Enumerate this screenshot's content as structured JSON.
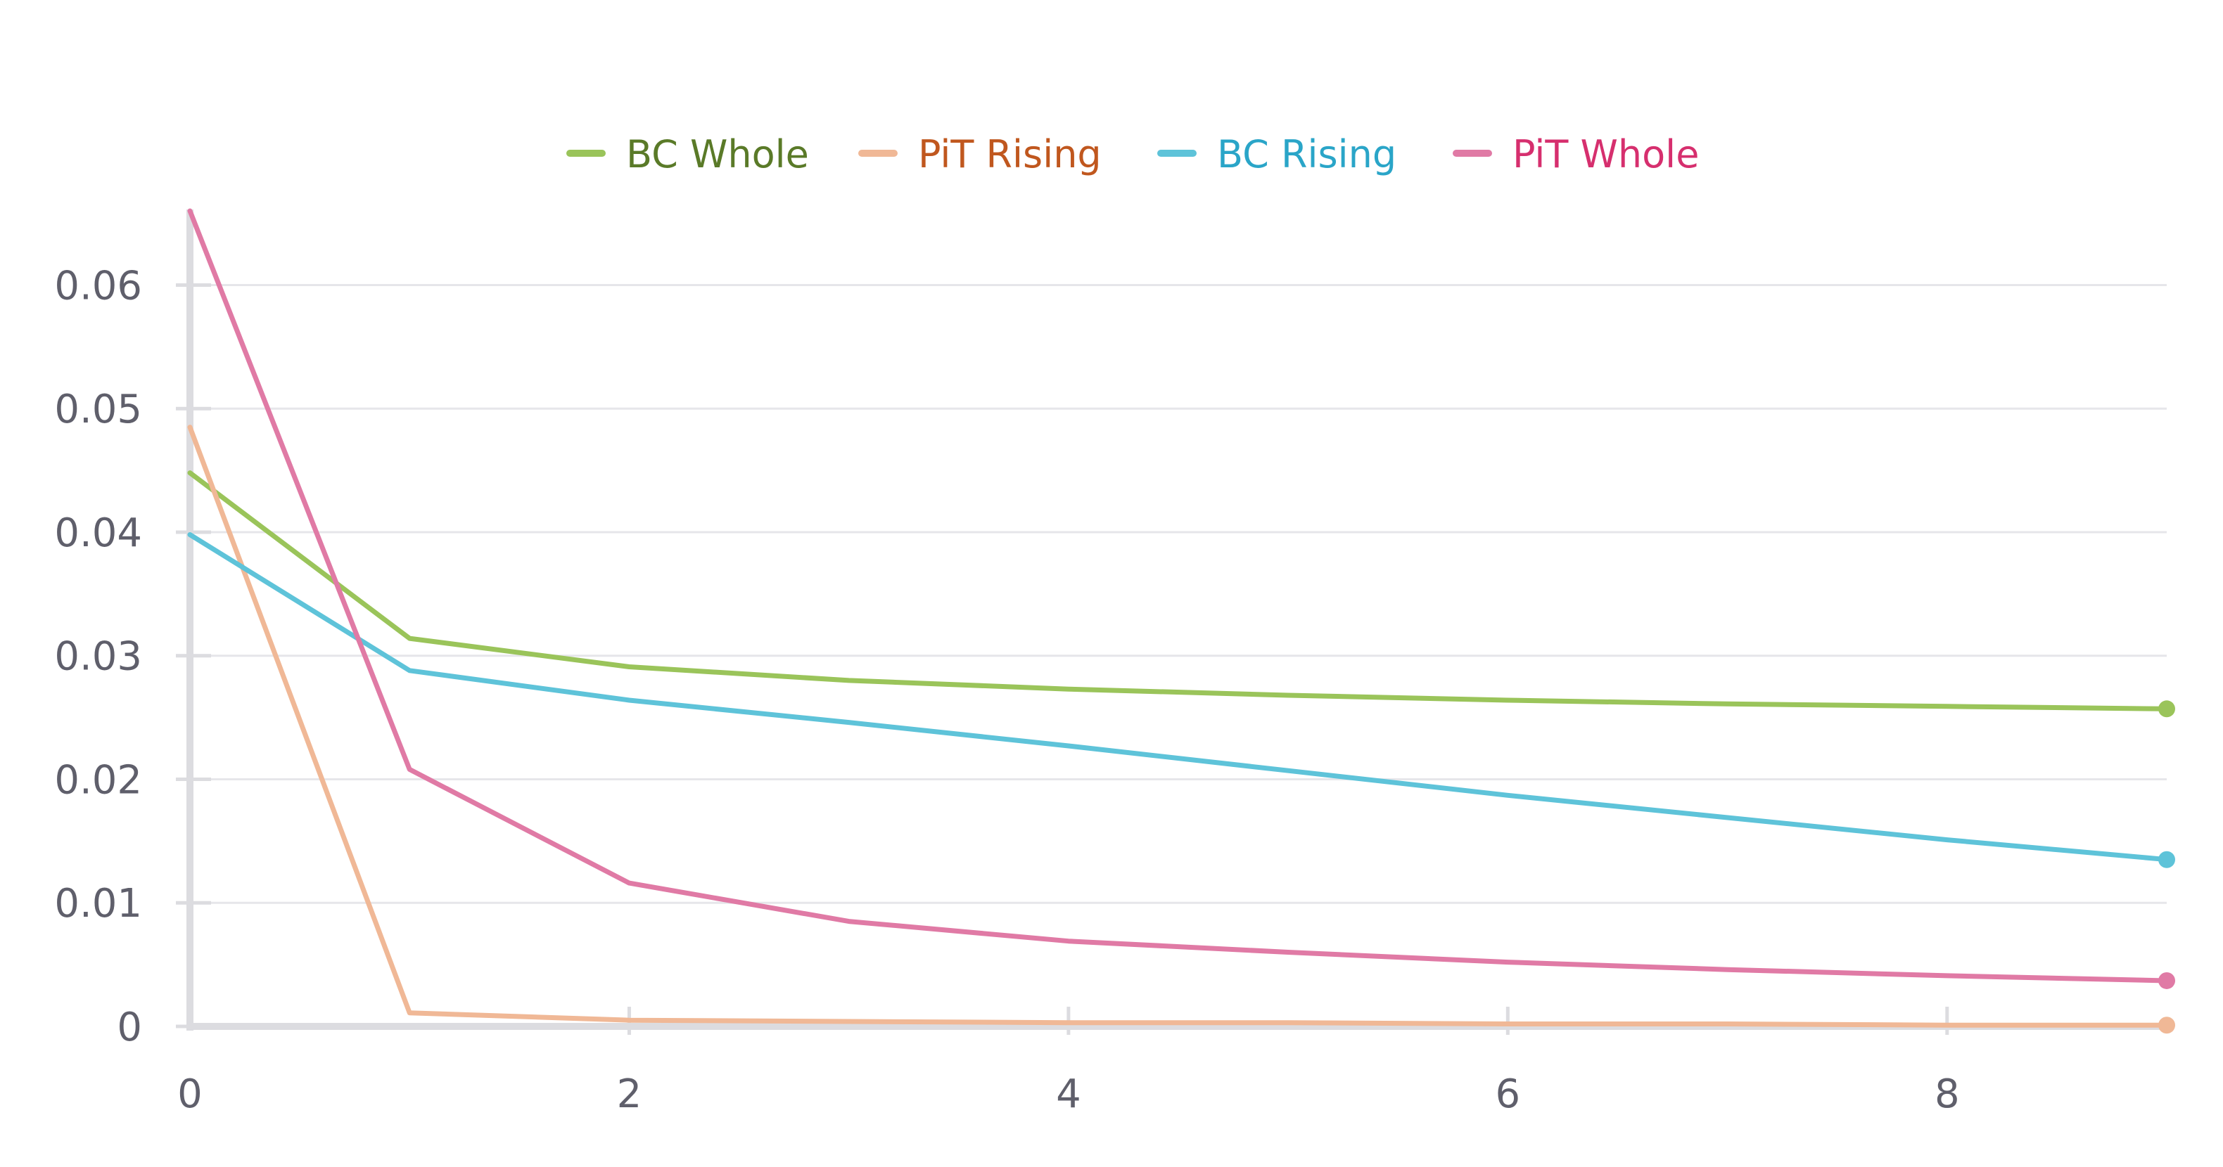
{
  "chart_data": {
    "type": "line",
    "x": [
      0,
      1,
      2,
      3,
      4,
      5,
      6,
      7,
      8,
      9
    ],
    "xlim": [
      0,
      9
    ],
    "ylim": [
      0,
      0.066
    ],
    "xticks": [
      0,
      2,
      4,
      6,
      8
    ],
    "xtick_labels": [
      "0",
      "2",
      "4",
      "6",
      "8"
    ],
    "yticks": [
      0,
      0.01,
      0.02,
      0.03,
      0.04,
      0.05,
      0.06
    ],
    "ytick_labels": [
      "0",
      "0.01",
      "0.02",
      "0.03",
      "0.04",
      "0.05",
      "0.06"
    ],
    "grid": true,
    "legend_position": "top-center",
    "title": "",
    "xlabel": "",
    "ylabel": "",
    "series": [
      {
        "name": "BC Whole",
        "color": "#9ac45a",
        "text_color": "#5a7a28",
        "values": [
          0.0448,
          0.0314,
          0.0291,
          0.028,
          0.0273,
          0.0268,
          0.0264,
          0.0261,
          0.0259,
          0.0257
        ]
      },
      {
        "name": "PiT Rising",
        "color": "#f0b896",
        "text_color": "#c0571e",
        "values": [
          0.0485,
          0.0011,
          0.0005,
          0.0004,
          0.0003,
          0.0003,
          0.0002,
          0.0002,
          0.0001,
          0.0001
        ]
      },
      {
        "name": "BC Rising",
        "color": "#5ec3d9",
        "text_color": "#2aa5c8",
        "values": [
          0.0398,
          0.0288,
          0.0264,
          0.0246,
          0.0227,
          0.0207,
          0.0187,
          0.0169,
          0.0151,
          0.0135
        ]
      },
      {
        "name": "PiT Whole",
        "color": "#e07aa5",
        "text_color": "#d62f6e",
        "values": [
          0.066,
          0.0208,
          0.0116,
          0.0085,
          0.0069,
          0.006,
          0.0052,
          0.0046,
          0.0041,
          0.0037
        ]
      }
    ]
  }
}
